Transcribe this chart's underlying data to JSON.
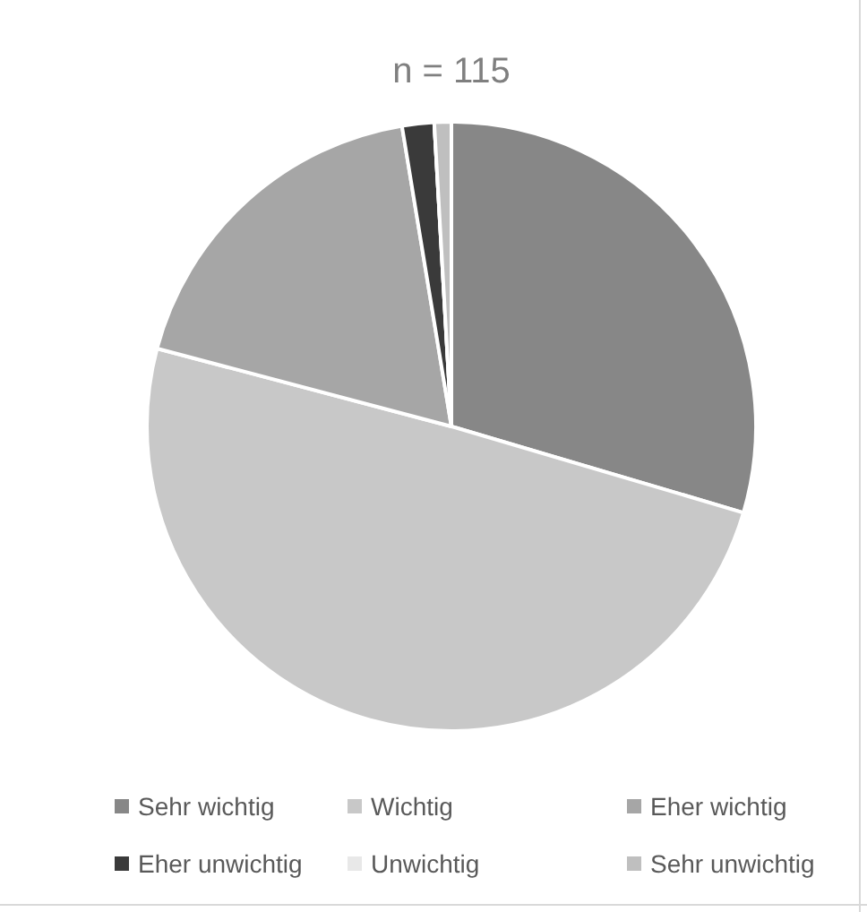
{
  "chart_data": {
    "type": "pie",
    "title": "n = 115",
    "categories": [
      "Sehr wichtig",
      "Wichtig",
      "Eher wichtig",
      "Eher unwichtig",
      "Unwichtig",
      "Sehr unwichtig"
    ],
    "values": [
      29.6,
      49.6,
      18.3,
      1.7,
      0,
      0.9
    ],
    "colors": [
      "#878787",
      "#c8c8c8",
      "#a6a6a6",
      "#3a3a3a",
      "#e8e8e8",
      "#bfbfbf"
    ],
    "legend": "bottom"
  }
}
